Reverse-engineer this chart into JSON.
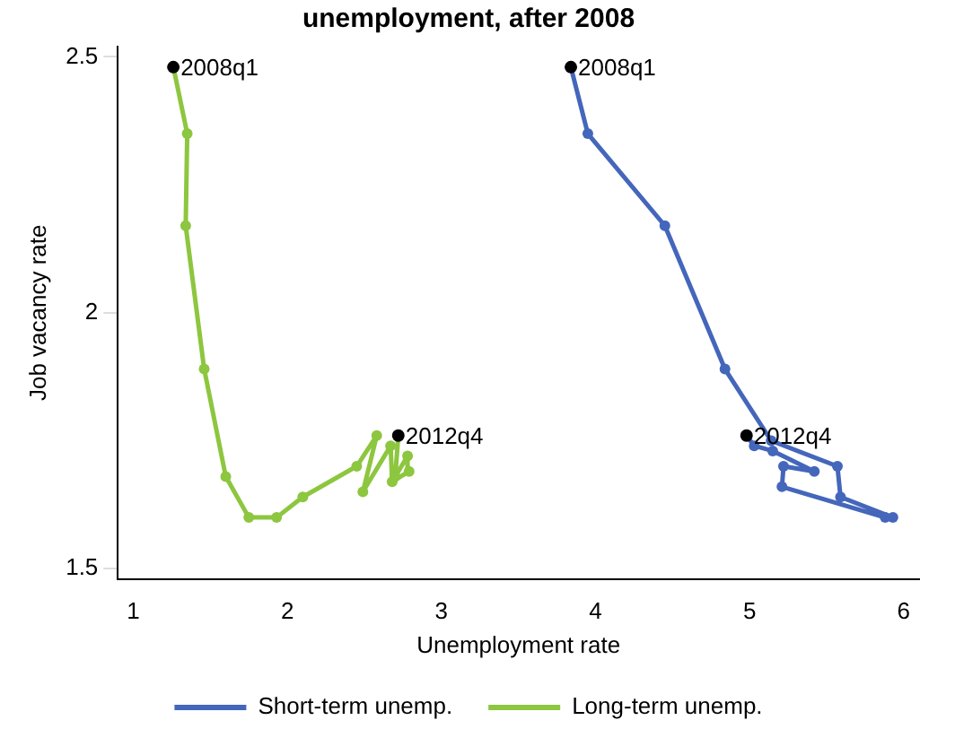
{
  "chart_data": {
    "type": "line",
    "title": "unemployment, after 2008",
    "xlabel": "Unemployment rate",
    "ylabel": "Job vacancy rate",
    "xlim": [
      0.9,
      6.1
    ],
    "xticks": [
      1,
      2,
      3,
      4,
      5,
      6
    ],
    "ylim": [
      1.48,
      2.52
    ],
    "yticks": [
      1.5,
      2,
      2.5
    ],
    "grid": false,
    "legend": "bottom",
    "marker": "circle",
    "line_style": "solid",
    "series": [
      {
        "name": "Short-term unemp.",
        "color": "#4466bb",
        "x": [
          3.84,
          3.95,
          4.45,
          4.84,
          5.14,
          5.57,
          5.59,
          5.93,
          5.88,
          5.21,
          5.22,
          5.42,
          5.15,
          5.03,
          4.98
        ],
        "values": [
          2.48,
          2.35,
          2.17,
          1.89,
          1.75,
          1.7,
          1.64,
          1.6,
          1.6,
          1.66,
          1.7,
          1.69,
          1.73,
          1.74,
          1.76
        ]
      },
      {
        "name": "Long-term unemp.",
        "color": "#8dc63f",
        "x": [
          1.26,
          1.35,
          1.34,
          1.46,
          1.6,
          1.75,
          1.93,
          2.1,
          2.45,
          2.58,
          2.49,
          2.67,
          2.68,
          2.79,
          2.78,
          2.7,
          2.72
        ],
        "values": [
          2.48,
          2.35,
          2.17,
          1.89,
          1.68,
          1.6,
          1.6,
          1.64,
          1.7,
          1.76,
          1.65,
          1.74,
          1.67,
          1.69,
          1.72,
          1.68,
          1.76
        ]
      }
    ],
    "annotations": [
      {
        "text": "2008q1",
        "x": 1.26,
        "y": 2.48
      },
      {
        "text": "2012q4",
        "x": 2.72,
        "y": 1.76
      },
      {
        "text": "2008q1",
        "x": 3.84,
        "y": 2.48
      },
      {
        "text": "2012q4",
        "x": 4.98,
        "y": 1.76
      }
    ]
  }
}
